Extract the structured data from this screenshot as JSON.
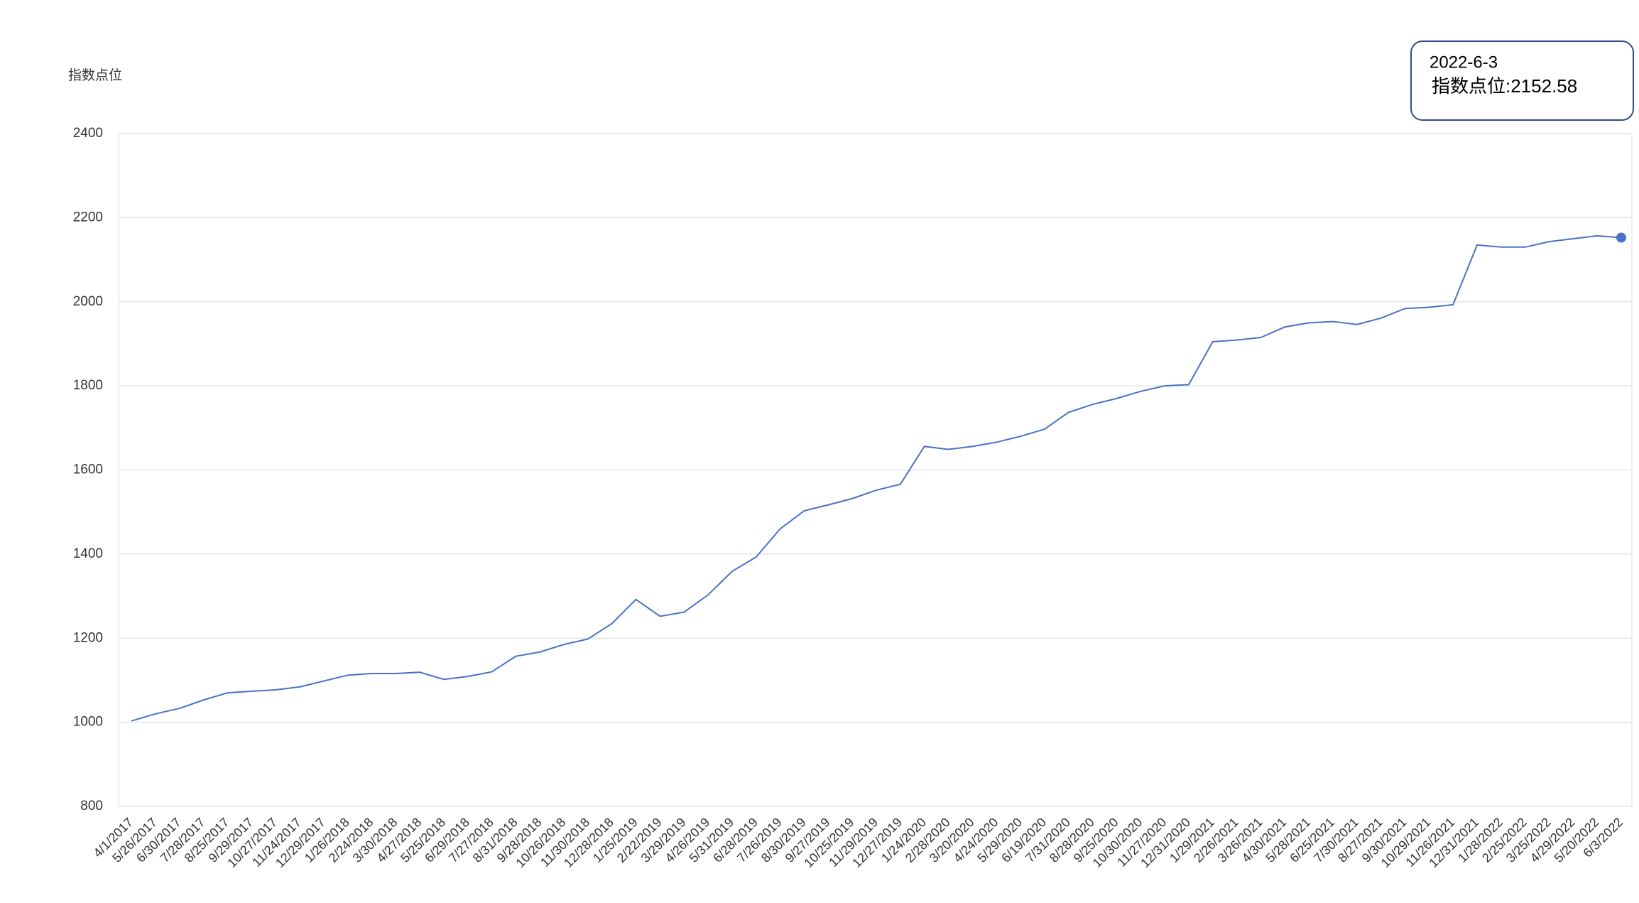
{
  "chart_data": {
    "type": "line",
    "y_axis_label": "指数点位",
    "categories": [
      "4/1/2017",
      "5/26/2017",
      "6/30/2017",
      "7/28/2017",
      "8/25/2017",
      "9/29/2017",
      "10/27/2017",
      "11/24/2017",
      "12/29/2017",
      "1/26/2018",
      "2/24/2018",
      "3/30/2018",
      "4/27/2018",
      "5/25/2018",
      "6/29/2018",
      "7/27/2018",
      "8/31/2018",
      "9/28/2018",
      "10/26/2018",
      "11/30/2018",
      "12/28/2018",
      "1/25/2019",
      "2/22/2019",
      "3/29/2019",
      "4/26/2019",
      "5/31/2019",
      "6/28/2019",
      "7/26/2019",
      "8/30/2019",
      "9/27/2019",
      "10/25/2019",
      "11/29/2019",
      "12/27/2019",
      "1/24/2020",
      "2/28/2020",
      "3/20/2020",
      "4/24/2020",
      "5/29/2020",
      "6/19/2020",
      "7/31/2020",
      "8/28/2020",
      "9/25/2020",
      "10/30/2020",
      "11/27/2020",
      "12/31/2020",
      "1/29/2021",
      "2/26/2021",
      "3/26/2021",
      "4/30/2021",
      "5/28/2021",
      "6/25/2021",
      "7/30/2021",
      "8/27/2021",
      "9/30/2021",
      "10/29/2021",
      "11/26/2021",
      "12/31/2021",
      "1/28/2022",
      "2/25/2022",
      "3/25/2022",
      "4/29/2022",
      "5/20/2022",
      "6/3/2022"
    ],
    "values": [
      1003,
      1020,
      1033,
      1053,
      1070,
      1074,
      1077,
      1084,
      1098,
      1112,
      1116,
      1116,
      1119,
      1102,
      1109,
      1120,
      1157,
      1167,
      1185,
      1198,
      1235,
      1292,
      1252,
      1262,
      1303,
      1359,
      1393,
      1460,
      1503,
      1517,
      1532,
      1552,
      1566,
      1656,
      1649,
      1656,
      1666,
      1680,
      1697,
      1737,
      1756,
      1770,
      1787,
      1800,
      1803,
      1905,
      1909,
      1915,
      1940,
      1950,
      1953,
      1946,
      1961,
      1984,
      1987,
      1993,
      2135,
      2130,
      2130,
      2143,
      2150,
      2157,
      2152.58
    ],
    "color": "#4a72c4",
    "ylim": [
      800,
      2400
    ],
    "yticks": [
      800,
      1000,
      1200,
      1400,
      1600,
      1800,
      2000,
      2200,
      2400
    ],
    "grid": true,
    "tooltip": {
      "date": "2022-6-3",
      "text": "指数点位:2152.58"
    }
  }
}
